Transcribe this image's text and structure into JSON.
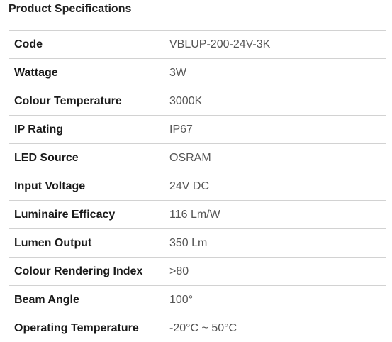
{
  "header": {
    "title": "Product Specifications"
  },
  "table": {
    "rows": [
      [
        "Code",
        "VBLUP-200-24V-3K"
      ],
      [
        "Wattage",
        "3W"
      ],
      [
        "Colour Temperature",
        "3000K"
      ],
      [
        "IP Rating",
        "IP67"
      ],
      [
        "LED Source",
        "OSRAM"
      ],
      [
        "Input Voltage",
        "24V DC"
      ],
      [
        "Luminaire Efficacy",
        "116 Lm/W"
      ],
      [
        "Lumen Output",
        "350 Lm"
      ],
      [
        "Colour Rendering Index",
        ">80"
      ],
      [
        "Beam Angle",
        "100°"
      ],
      [
        "Operating Temperature",
        "-20°C ~ 50°C"
      ]
    ]
  }
}
